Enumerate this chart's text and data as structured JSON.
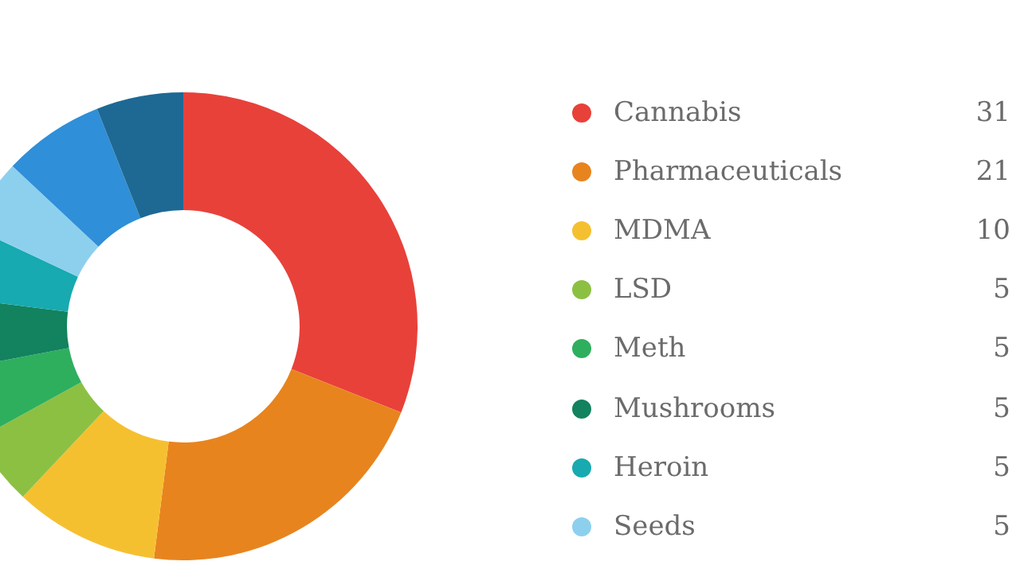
{
  "chart_data": {
    "type": "donut",
    "categories": [
      "Cannabis",
      "Pharmaceuticals",
      "MDMA",
      "LSD",
      "Meth",
      "Mushrooms",
      "Heroin",
      "Seeds",
      null,
      null
    ],
    "values": [
      31,
      21,
      10,
      5,
      5,
      5,
      5,
      5,
      7,
      6
    ],
    "colors": [
      "#e8413a",
      "#e8841e",
      "#f5c030",
      "#8cc043",
      "#2eaf5e",
      "#13825e",
      "#17aab0",
      "#8dd0ee",
      "#2f8fd8",
      "#1d6994"
    ],
    "value_labels": [
      "31",
      "21",
      "10",
      "5",
      "5",
      "5",
      "5",
      "5",
      null,
      null
    ],
    "legend": "right"
  }
}
